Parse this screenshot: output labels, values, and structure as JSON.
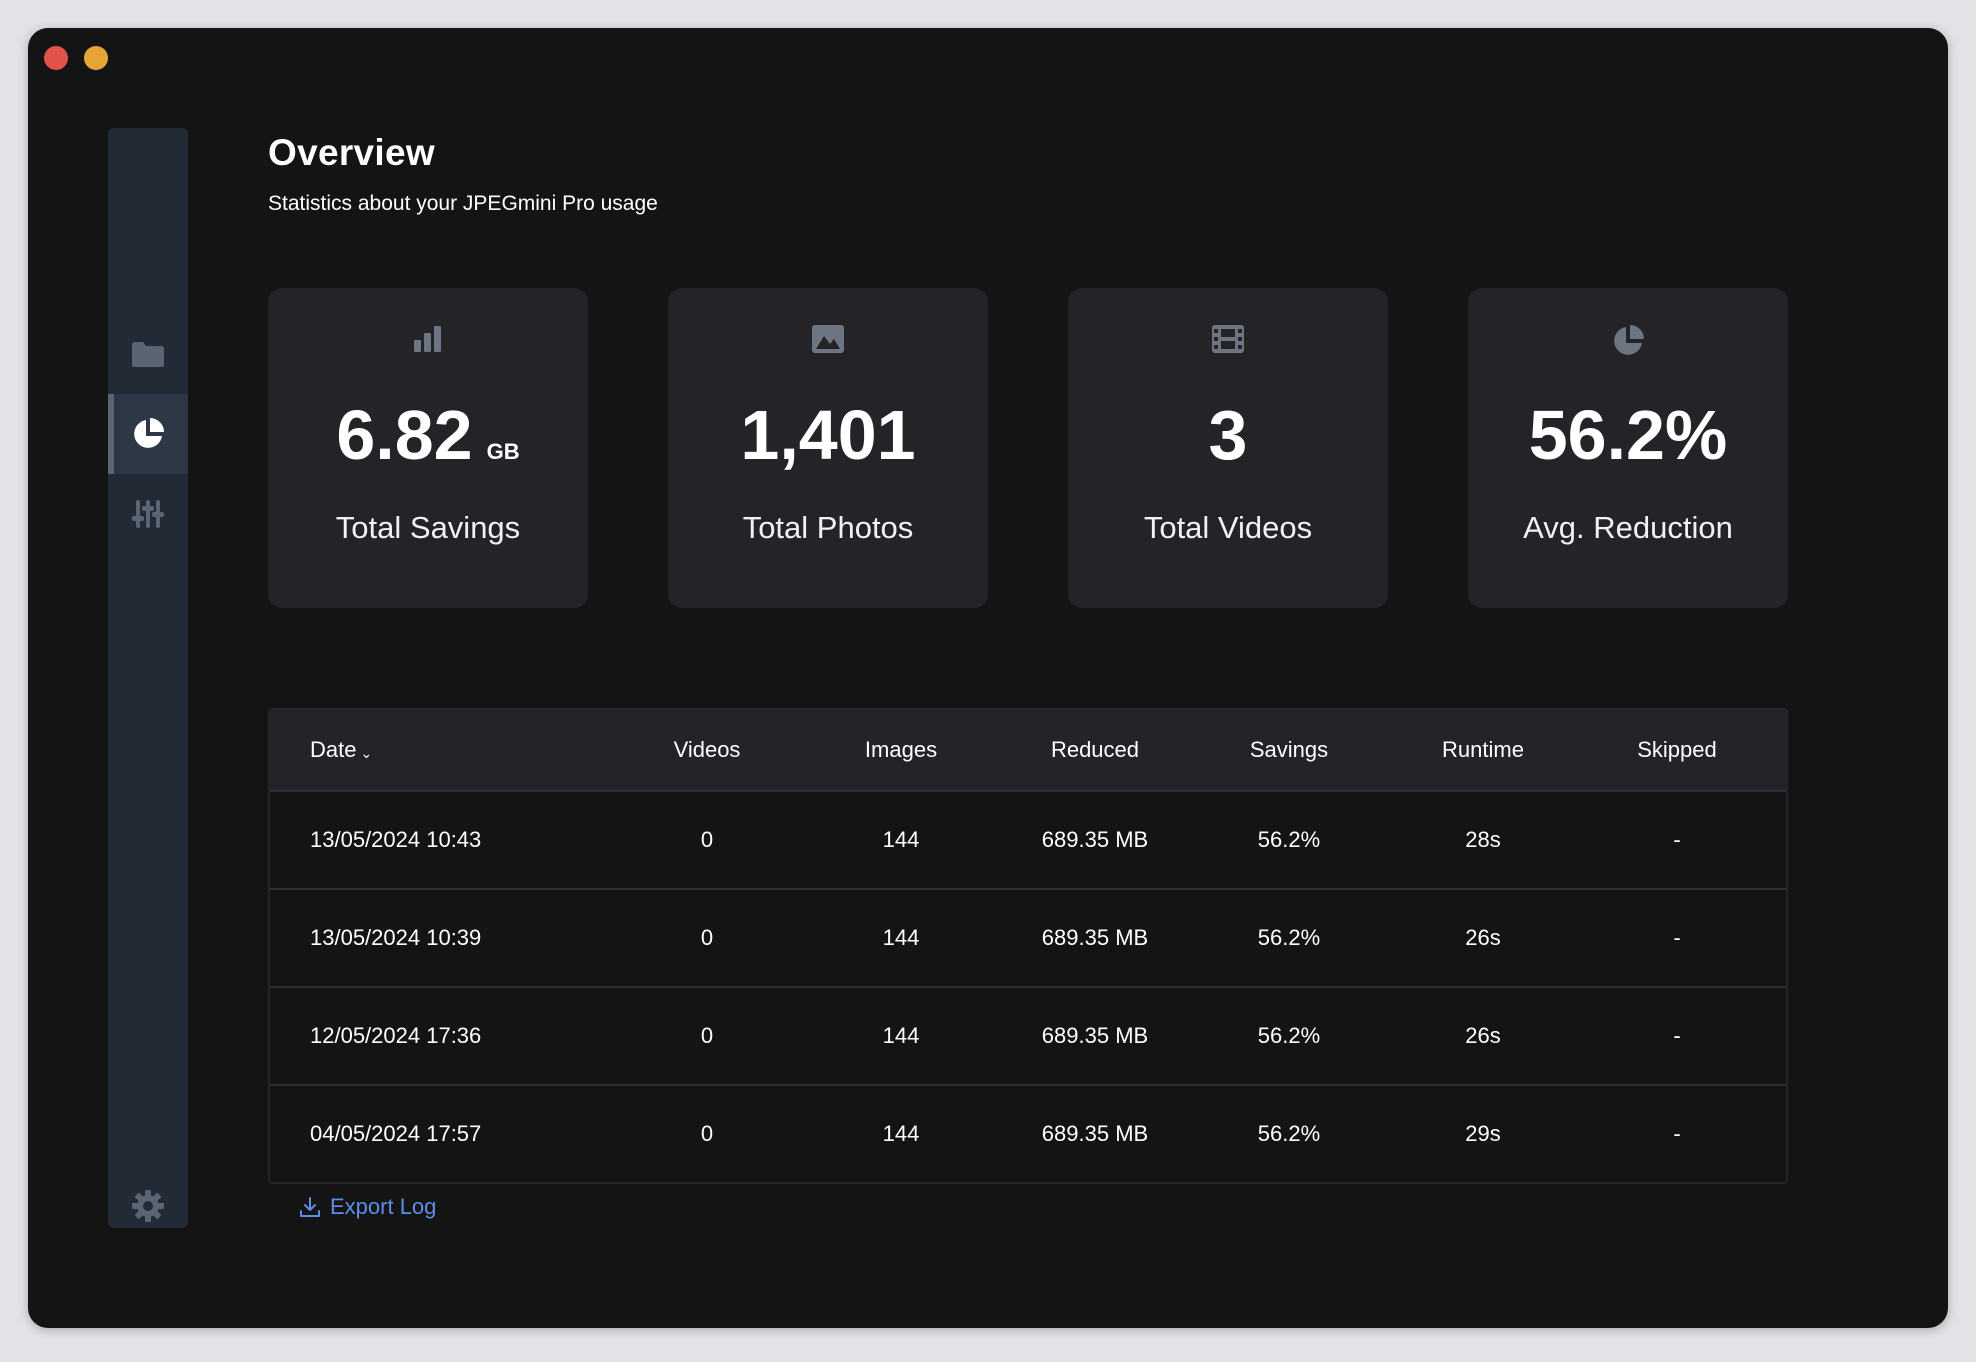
{
  "header": {
    "title": "Overview",
    "subtitle": "Statistics about your JPEGmini Pro usage"
  },
  "stats": [
    {
      "value": "6.82",
      "unit": "GB",
      "label": "Total Savings",
      "icon": "bar-chart-icon"
    },
    {
      "value": "1,401",
      "label": "Total Photos",
      "icon": "image-icon"
    },
    {
      "value": "3",
      "label": "Total Videos",
      "icon": "film-icon"
    },
    {
      "value": "56.2%",
      "label": "Avg. Reduction",
      "icon": "pie-chart-icon"
    }
  ],
  "table": {
    "columns": [
      "Date",
      "Videos",
      "Images",
      "Reduced",
      "Savings",
      "Runtime",
      "Skipped"
    ],
    "rows": [
      [
        "13/05/2024 10:43",
        "0",
        "144",
        "689.35 MB",
        "56.2%",
        "28s",
        "-"
      ],
      [
        "13/05/2024 10:39",
        "0",
        "144",
        "689.35 MB",
        "56.2%",
        "26s",
        "-"
      ],
      [
        "12/05/2024 17:36",
        "0",
        "144",
        "689.35 MB",
        "56.2%",
        "26s",
        "-"
      ],
      [
        "04/05/2024 17:57",
        "0",
        "144",
        "689.35 MB",
        "56.2%",
        "29s",
        "-"
      ]
    ]
  },
  "export_label": "Export Log",
  "sidebar": {
    "items": [
      "folder-icon",
      "pie-chart-icon",
      "sliders-icon",
      "gear-icon"
    ],
    "active": "pie-chart-icon"
  },
  "colors": {
    "background": "#141415",
    "card": "#232328",
    "sidebar": "#222a35",
    "accent_link": "#5c8dea",
    "close": "#e2524b",
    "minimize": "#e6a436"
  }
}
